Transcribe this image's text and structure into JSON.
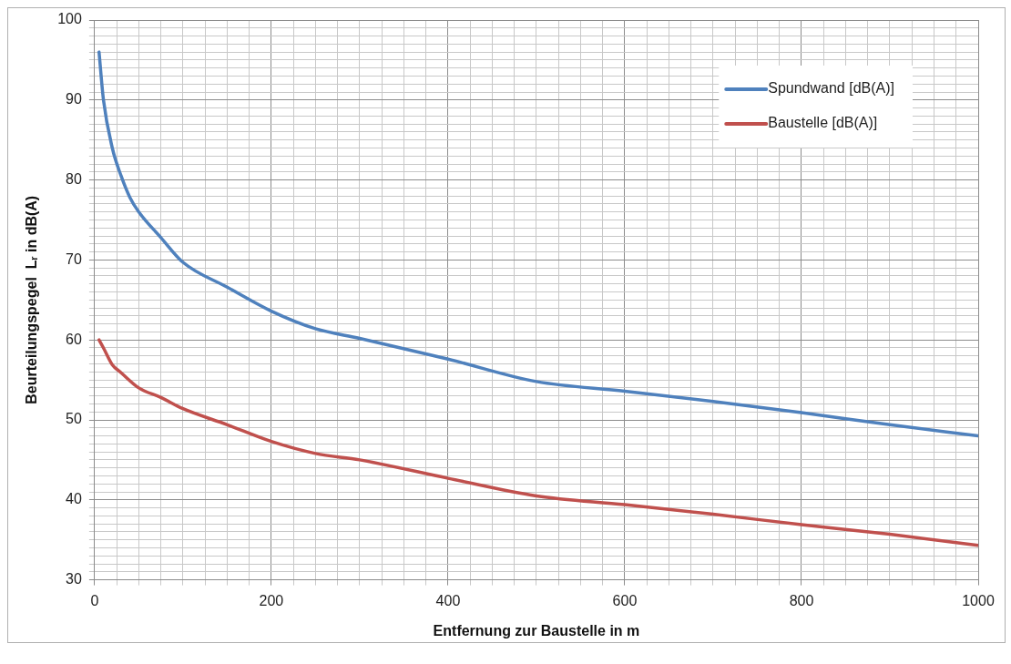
{
  "chart_data": {
    "type": "line",
    "xlabel": "Entfernung zur Baustelle in m",
    "ylabel": "Beurteilungspegel  Lᵣ in dB(A)",
    "xlim": [
      0,
      1000
    ],
    "ylim": [
      30,
      100
    ],
    "xticks": [
      0,
      {
        "value": 25,
        "label": null
      },
      {
        "value": 50,
        "label": null
      },
      {
        "value": 75,
        "label": null
      },
      {
        "value": 100,
        "label": null
      },
      {
        "value": 125,
        "label": null
      },
      {
        "value": 150,
        "label": null
      },
      {
        "value": 175,
        "label": null
      },
      200,
      {
        "value": 225,
        "label": null
      },
      {
        "value": 250,
        "label": null
      },
      {
        "value": 275,
        "label": null
      },
      {
        "value": 300,
        "label": null
      },
      {
        "value": 325,
        "label": null
      },
      {
        "value": 350,
        "label": null
      },
      {
        "value": 375,
        "label": null
      },
      400,
      {
        "value": 425,
        "label": null
      },
      {
        "value": 450,
        "label": null
      },
      {
        "value": 475,
        "label": null
      },
      {
        "value": 500,
        "label": null
      },
      {
        "value": 525,
        "label": null
      },
      {
        "value": 550,
        "label": null
      },
      {
        "value": 575,
        "label": null
      },
      600,
      {
        "value": 625,
        "label": null
      },
      {
        "value": 650,
        "label": null
      },
      {
        "value": 675,
        "label": null
      },
      {
        "value": 700,
        "label": null
      },
      {
        "value": 725,
        "label": null
      },
      {
        "value": 750,
        "label": null
      },
      {
        "value": 775,
        "label": null
      },
      800,
      {
        "value": 825,
        "label": null
      },
      {
        "value": 850,
        "label": null
      },
      {
        "value": 875,
        "label": null
      },
      {
        "value": 900,
        "label": null
      },
      {
        "value": 925,
        "label": null
      },
      {
        "value": 950,
        "label": null
      },
      {
        "value": 975,
        "label": null
      },
      1000
    ],
    "yticks": [
      30,
      {
        "value": 31,
        "label": null
      },
      {
        "value": 32,
        "label": null
      },
      {
        "value": 33,
        "label": null
      },
      {
        "value": 34,
        "label": null
      },
      {
        "value": 35,
        "label": null
      },
      {
        "value": 36,
        "label": null
      },
      {
        "value": 37,
        "label": null
      },
      {
        "value": 38,
        "label": null
      },
      {
        "value": 39,
        "label": null
      },
      40,
      {
        "value": 41,
        "label": null
      },
      {
        "value": 42,
        "label": null
      },
      {
        "value": 43,
        "label": null
      },
      {
        "value": 44,
        "label": null
      },
      {
        "value": 45,
        "label": null
      },
      {
        "value": 46,
        "label": null
      },
      {
        "value": 47,
        "label": null
      },
      {
        "value": 48,
        "label": null
      },
      {
        "value": 49,
        "label": null
      },
      50,
      {
        "value": 51,
        "label": null
      },
      {
        "value": 52,
        "label": null
      },
      {
        "value": 53,
        "label": null
      },
      {
        "value": 54,
        "label": null
      },
      {
        "value": 55,
        "label": null
      },
      {
        "value": 56,
        "label": null
      },
      {
        "value": 57,
        "label": null
      },
      {
        "value": 58,
        "label": null
      },
      {
        "value": 59,
        "label": null
      },
      60,
      {
        "value": 61,
        "label": null
      },
      {
        "value": 62,
        "label": null
      },
      {
        "value": 63,
        "label": null
      },
      {
        "value": 64,
        "label": null
      },
      {
        "value": 65,
        "label": null
      },
      {
        "value": 66,
        "label": null
      },
      {
        "value": 67,
        "label": null
      },
      {
        "value": 68,
        "label": null
      },
      {
        "value": 69,
        "label": null
      },
      70,
      {
        "value": 71,
        "label": null
      },
      {
        "value": 72,
        "label": null
      },
      {
        "value": 73,
        "label": null
      },
      {
        "value": 74,
        "label": null
      },
      {
        "value": 75,
        "label": null
      },
      {
        "value": 76,
        "label": null
      },
      {
        "value": 77,
        "label": null
      },
      {
        "value": 78,
        "label": null
      },
      {
        "value": 79,
        "label": null
      },
      80,
      {
        "value": 81,
        "label": null
      },
      {
        "value": 82,
        "label": null
      },
      {
        "value": 83,
        "label": null
      },
      {
        "value": 84,
        "label": null
      },
      {
        "value": 85,
        "label": null
      },
      {
        "value": 86,
        "label": null
      },
      {
        "value": 87,
        "label": null
      },
      {
        "value": 88,
        "label": null
      },
      {
        "value": 89,
        "label": null
      },
      90,
      {
        "value": 91,
        "label": null
      },
      {
        "value": 92,
        "label": null
      },
      {
        "value": 93,
        "label": null
      },
      {
        "value": 94,
        "label": null
      },
      {
        "value": 95,
        "label": null
      },
      {
        "value": 96,
        "label": null
      },
      {
        "value": 97,
        "label": null
      },
      {
        "value": 98,
        "label": null
      },
      {
        "value": 99,
        "label": null
      },
      100
    ],
    "grid": true,
    "legend": "top right",
    "marker": "none",
    "line_style": "solid",
    "series": [
      {
        "name": "Spundwand [dB(A)]",
        "color": "#4f81bd",
        "x": [
          5,
          10,
          20,
          30,
          40,
          50,
          75,
          100,
          150,
          200,
          250,
          300,
          400,
          500,
          600,
          700,
          800,
          900,
          1000
        ],
        "values": [
          96,
          90,
          84,
          80.5,
          77.8,
          76,
          72.8,
          69.7,
          66.6,
          63.6,
          61.4,
          60.2,
          57.6,
          54.8,
          53.6,
          52.3,
          50.9,
          49.4,
          48
        ]
      },
      {
        "name": "Baustelle [dB(A)]",
        "color": "#c0504d",
        "x": [
          5,
          10,
          20,
          30,
          50,
          75,
          100,
          150,
          200,
          250,
          300,
          400,
          500,
          600,
          700,
          800,
          900,
          1000
        ],
        "values": [
          60,
          59,
          56.9,
          55.9,
          54,
          52.8,
          51.4,
          49.4,
          47.3,
          45.8,
          45,
          42.7,
          40.5,
          39.4,
          38.2,
          36.9,
          35.7,
          34.3
        ]
      }
    ]
  }
}
